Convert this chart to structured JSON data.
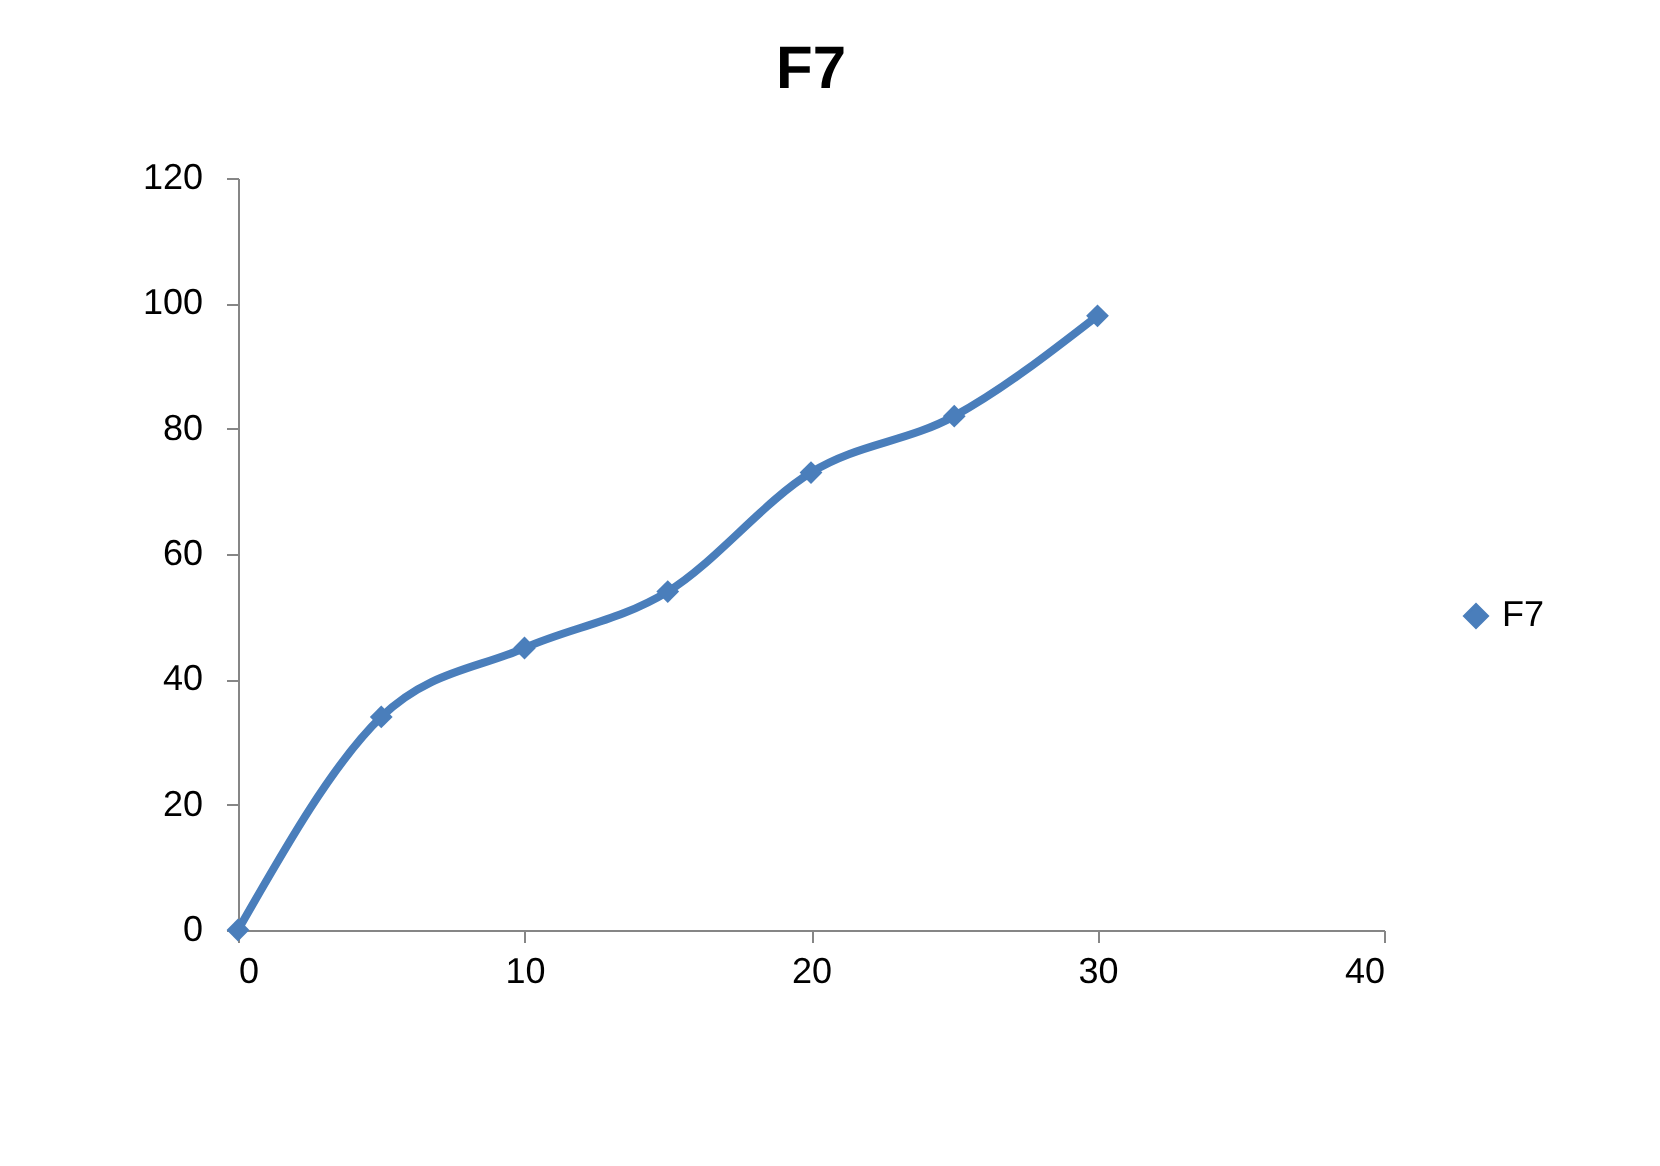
{
  "chart_data": {
    "type": "line",
    "title": "F7",
    "x": [
      0,
      5,
      10,
      15,
      20,
      25,
      30
    ],
    "series": [
      {
        "name": "F7",
        "color": "#4a7ebb",
        "values": [
          0,
          34,
          45,
          54,
          73,
          82,
          98
        ]
      }
    ],
    "xlim": [
      0,
      40
    ],
    "xticks": [
      0,
      10,
      20,
      30,
      40
    ],
    "ylim": [
      0,
      120
    ],
    "yticks": [
      0,
      20,
      40,
      60,
      80,
      100,
      120
    ],
    "grid": false,
    "legend": "right",
    "marker": "diamond",
    "line_style": "solid"
  }
}
